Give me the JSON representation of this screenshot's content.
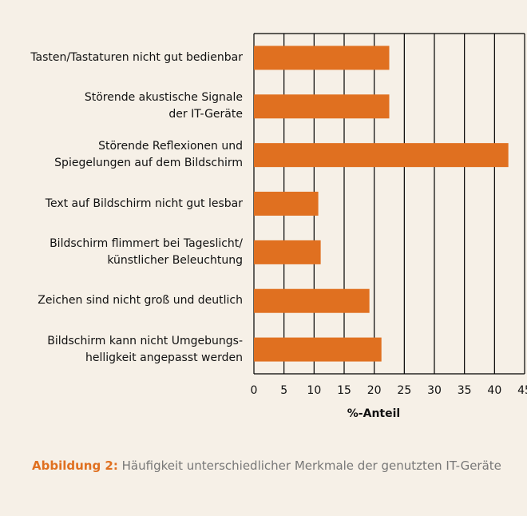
{
  "chart_data": {
    "type": "hbar",
    "categories": [
      "Tasten/Tastaturen nicht gut bedienbar",
      "Störende akustische Signale\nder IT-Geräte",
      "Störende Reflexionen und\nSpiegelungen auf dem Bildschirm",
      "Text auf Bildschirm nicht gut lesbar",
      "Bildschirm flimmert bei Tageslicht/\nkünstlicher Beleuchtung",
      "Zeichen sind nicht groß und deutlich",
      "Bildschirm kann nicht Umgebungs-\nhelligkeit angepasst werden"
    ],
    "values": [
      22.5,
      22.5,
      42.3,
      10.7,
      11.1,
      19.2,
      21.2
    ],
    "color": "#e07020",
    "xlim": [
      0,
      45
    ],
    "xticks": [
      0,
      5,
      10,
      15,
      20,
      25,
      30,
      35,
      40,
      45
    ],
    "xlabel": "%-Anteil",
    "grid": true,
    "caption_label": "Abbildung 2:",
    "caption_text": "Häufigkeit unterschiedlicher Merkmale der genutzten IT-Geräte"
  }
}
